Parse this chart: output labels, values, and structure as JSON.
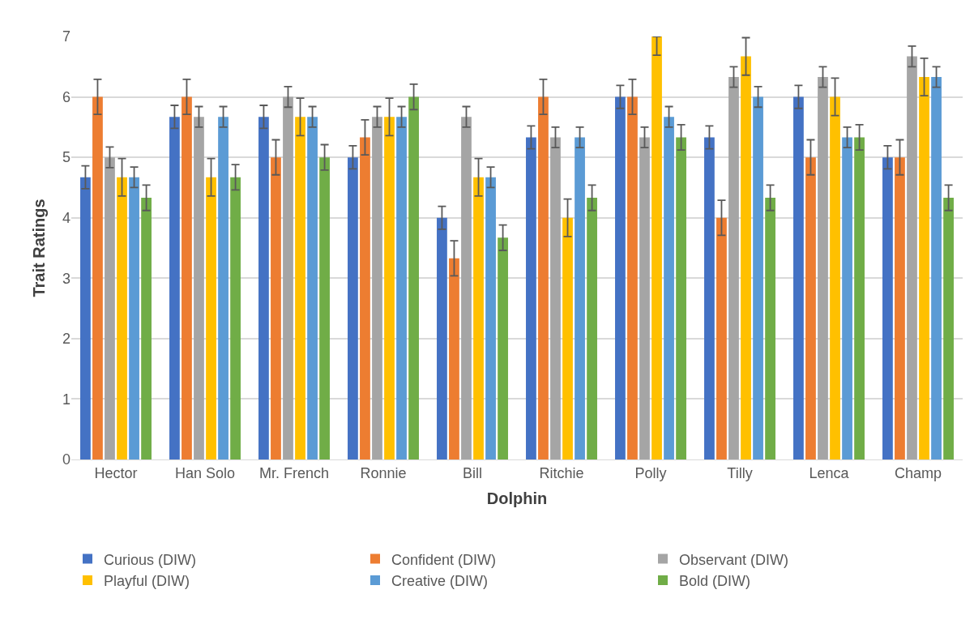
{
  "chart_data": {
    "type": "bar",
    "xlabel": "Dolphin",
    "ylabel": "Trait Ratings",
    "categories": [
      "Hector",
      "Han Solo",
      "Mr. French",
      "Ronnie",
      "Bill",
      "Ritchie",
      "Polly",
      "Tilly",
      "Lenca",
      "Champ"
    ],
    "series": [
      {
        "name": "Curious (DIW)",
        "color": "#4472c4",
        "values": [
          4.67,
          5.67,
          5.67,
          5,
          4,
          5.33,
          6,
          5.33,
          6,
          5
        ],
        "errors": [
          0.19,
          0.19,
          0.19,
          0.19,
          0.19,
          0.19,
          0.19,
          0.19,
          0.19,
          0.19
        ]
      },
      {
        "name": "Confident (DIW)",
        "color": "#ed7d31",
        "values": [
          6,
          6,
          5,
          5.33,
          3.33,
          6,
          6,
          4,
          5,
          5
        ],
        "errors": [
          0.29,
          0.29,
          0.29,
          0.29,
          0.29,
          0.29,
          0.29,
          0.29,
          0.29,
          0.29
        ]
      },
      {
        "name": "Observant (DIW)",
        "color": "#a5a5a5",
        "values": [
          5,
          5.67,
          6,
          5.67,
          5.67,
          5.33,
          5.33,
          6.33,
          6.33,
          6.67
        ],
        "errors": [
          0.17,
          0.17,
          0.17,
          0.17,
          0.17,
          0.17,
          0.17,
          0.17,
          0.17,
          0.17
        ]
      },
      {
        "name": "Playful (DIW)",
        "color": "#ffc000",
        "values": [
          4.67,
          4.67,
          5.67,
          5.67,
          4.67,
          4,
          7,
          6.67,
          6,
          6.33
        ],
        "errors": [
          0.31,
          0.31,
          0.31,
          0.31,
          0.31,
          0.31,
          [
            6.69,
            7
          ],
          0.31,
          0.31,
          0.31
        ]
      },
      {
        "name": "Creative (DIW)",
        "color": "#5b9bd5",
        "values": [
          4.67,
          5.67,
          5.67,
          5.67,
          4.67,
          5.33,
          5.67,
          6,
          5.33,
          6.33
        ],
        "errors": [
          0.17,
          0.17,
          0.17,
          0.17,
          0.17,
          0.17,
          0.17,
          0.17,
          0.17,
          0.17
        ]
      },
      {
        "name": "Bold (DIW)",
        "color": "#70ad47",
        "values": [
          4.33,
          4.67,
          5,
          6,
          3.67,
          4.33,
          5.33,
          4.33,
          5.33,
          4.33
        ],
        "errors": [
          0.21,
          0.21,
          0.21,
          0.21,
          0.21,
          0.21,
          0.21,
          0.21,
          0.21,
          0.21
        ]
      }
    ],
    "ylim": [
      0,
      7
    ],
    "yticks": [
      0,
      1,
      2,
      3,
      4,
      5,
      6,
      7
    ],
    "grid": "y",
    "legend": "bottom"
  }
}
